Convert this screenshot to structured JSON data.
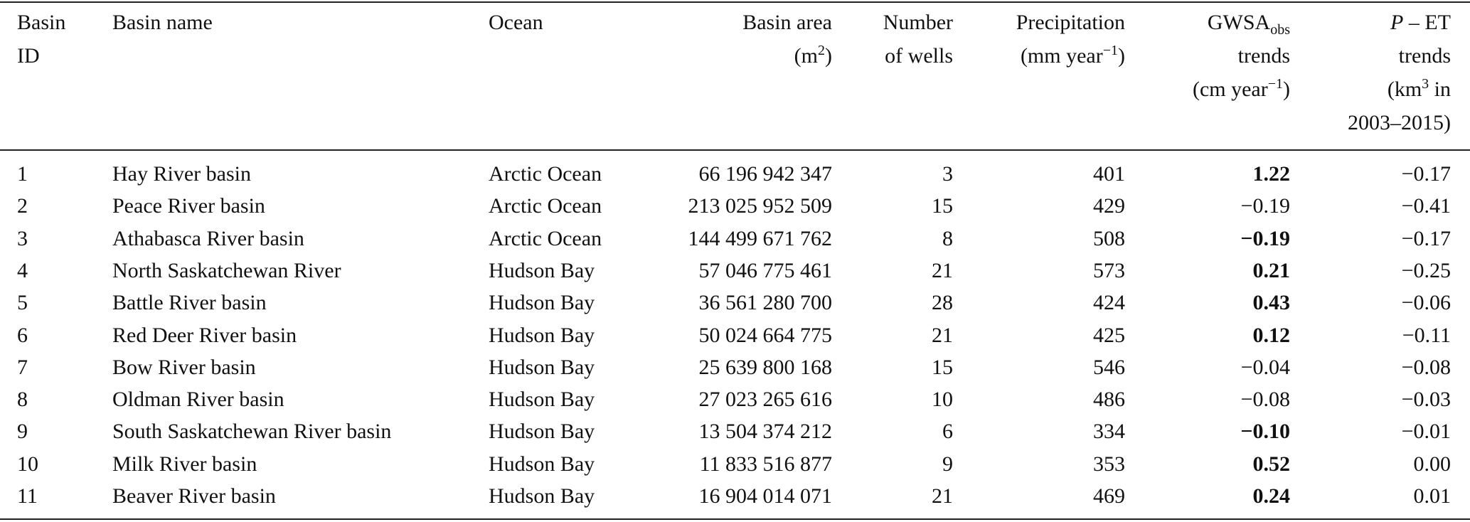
{
  "table": {
    "header": [
      [
        [
          "Basin"
        ],
        [
          "ID"
        ]
      ],
      [
        [
          "Basin name"
        ]
      ],
      [
        [
          "Ocean"
        ]
      ],
      [
        [
          "Basin area"
        ],
        [
          "(m",
          {
            "sup": "2"
          },
          ")"
        ]
      ],
      [
        [
          "Number"
        ],
        [
          "of wells"
        ]
      ],
      [
        [
          "Precipitation"
        ],
        [
          "(mm year",
          {
            "sup": "−1"
          },
          ")"
        ]
      ],
      [
        [
          "GWSA",
          {
            "sub": "obs"
          }
        ],
        [
          "trends"
        ],
        [
          "(cm year",
          {
            "sup": "−1"
          },
          ")"
        ]
      ],
      [
        [
          {
            "i": "P"
          },
          " – ET"
        ],
        [
          "trends"
        ],
        [
          "(km",
          {
            "sup": "3"
          },
          " in"
        ],
        [
          "2003–2015)"
        ]
      ]
    ],
    "rows": [
      [
        "1",
        "Hay River basin",
        "Arctic Ocean",
        "66 196 942 347",
        "3",
        "401",
        "1.22",
        "−0.17"
      ],
      [
        "2",
        "Peace River basin",
        "Arctic Ocean",
        "213 025 952 509",
        "15",
        "429",
        "−0.19",
        "−0.41"
      ],
      [
        "3",
        "Athabasca River basin",
        "Arctic Ocean",
        "144 499 671 762",
        "8",
        "508",
        "−0.19",
        "−0.17"
      ],
      [
        "4",
        "North Saskatchewan River",
        "Hudson Bay",
        "57 046 775 461",
        "21",
        "573",
        "0.21",
        "−0.25"
      ],
      [
        "5",
        "Battle River basin",
        "Hudson Bay",
        "36 561 280 700",
        "28",
        "424",
        "0.43",
        "−0.06"
      ],
      [
        "6",
        "Red Deer River basin",
        "Hudson Bay",
        "50 024 664 775",
        "21",
        "425",
        "0.12",
        "−0.11"
      ],
      [
        "7",
        "Bow River basin",
        "Hudson Bay",
        "25 639 800 168",
        "15",
        "546",
        "−0.04",
        "−0.08"
      ],
      [
        "8",
        "Oldman River basin",
        "Hudson Bay",
        "27 023 265 616",
        "10",
        "486",
        "−0.08",
        "−0.03"
      ],
      [
        "9",
        "South Saskatchewan River basin",
        "Hudson Bay",
        "13 504 374 212",
        "6",
        "334",
        "−0.10",
        "−0.01"
      ],
      [
        "10",
        "Milk River basin",
        "Hudson Bay",
        "11 833 516 877",
        "9",
        "353",
        "0.52",
        "0.00"
      ],
      [
        "11",
        "Beaver River basin",
        "Hudson Bay",
        "16 904 014 071",
        "21",
        "469",
        "0.24",
        "0.01"
      ]
    ],
    "bold": [
      [
        false,
        false,
        false,
        false,
        false,
        false,
        true,
        false
      ],
      [
        false,
        false,
        false,
        false,
        false,
        false,
        false,
        false
      ],
      [
        false,
        false,
        false,
        false,
        false,
        false,
        true,
        false
      ],
      [
        false,
        false,
        false,
        false,
        false,
        false,
        true,
        false
      ],
      [
        false,
        false,
        false,
        false,
        false,
        false,
        true,
        false
      ],
      [
        false,
        false,
        false,
        false,
        false,
        false,
        true,
        false
      ],
      [
        false,
        false,
        false,
        false,
        false,
        false,
        false,
        false
      ],
      [
        false,
        false,
        false,
        false,
        false,
        false,
        false,
        false
      ],
      [
        false,
        false,
        false,
        false,
        false,
        false,
        true,
        false
      ],
      [
        false,
        false,
        false,
        false,
        false,
        false,
        true,
        false
      ],
      [
        false,
        false,
        false,
        false,
        false,
        false,
        true,
        false
      ]
    ]
  }
}
